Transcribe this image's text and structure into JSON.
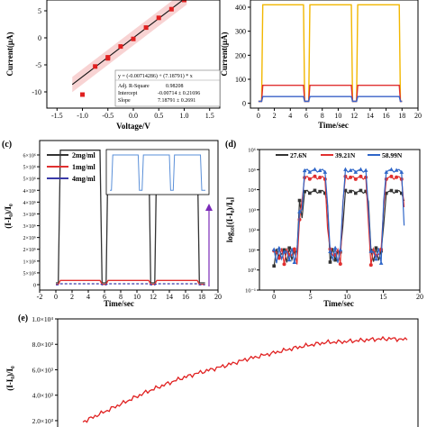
{
  "chart_data": [
    {
      "panel": "a",
      "type": "scatter",
      "xlabel": "Voltage/V",
      "ylabel": "Current(μA)",
      "xticks": [
        "-1.5",
        "-1.0",
        "-0.5",
        "0.0",
        "0.5",
        "1.0",
        "1.5"
      ],
      "yticks": [
        "5",
        "0",
        "-5",
        "-10"
      ],
      "xlim": [
        -1.7,
        1.7
      ],
      "ylim": [
        -13,
        7
      ],
      "points": [
        [
          -1.0,
          -10.5
        ],
        [
          -0.75,
          -5.3
        ],
        [
          -0.5,
          -3.8
        ],
        [
          -0.25,
          -1.6
        ],
        [
          0.0,
          -0.2
        ],
        [
          0.25,
          1.9
        ],
        [
          0.5,
          3.7
        ],
        [
          0.75,
          5.3
        ],
        [
          1.0,
          7.0
        ],
        [
          -0.5,
          -3.6
        ]
      ],
      "fit": {
        "intercept": -0.00714,
        "slope": 7.18791
      },
      "fit_box": {
        "equation": "y = (-0.00714286) + (7.18791) * x",
        "r2_label": "Adj. R-Square",
        "r2_value": "0.98208",
        "intercept_label": "Intercept",
        "intercept_value": "-0.00714 ± 0.21696",
        "slope_label": "Slope",
        "slope_value": "7.18791 ± 0.2691"
      }
    },
    {
      "panel": "b",
      "type": "line",
      "xlabel": "Time/sec",
      "ylabel": "Current(μA)",
      "xticks": [
        "0",
        "2",
        "4",
        "6",
        "8",
        "10",
        "12",
        "14",
        "16",
        "18",
        "20"
      ],
      "yticks": [
        "400",
        "300",
        "200",
        "100",
        "0"
      ],
      "xlim": [
        -1,
        20
      ],
      "ylim": [
        -20,
        430
      ],
      "series": [
        {
          "color": "#f2b700",
          "on": 410,
          "off": 8
        },
        {
          "color": "#e03030",
          "on": 75,
          "off": 8
        },
        {
          "color": "#3a62c8",
          "on": 28,
          "off": 8
        }
      ],
      "cycles": [
        [
          0.4,
          5.8
        ],
        [
          6.3,
          11.8
        ],
        [
          12.3,
          17.8
        ]
      ]
    },
    {
      "panel": "c",
      "type": "line",
      "xlabel": "Time/sec",
      "ylabel": "(I-I₀)/I₀",
      "xticks": [
        "-2",
        "0",
        "2",
        "4",
        "6",
        "8",
        "10",
        "12",
        "14",
        "16",
        "18",
        "20"
      ],
      "yticks": [
        "0",
        "5×10⁵",
        "1×10⁶",
        "2×10⁶",
        "2×10⁶",
        "3×10⁶",
        "3×10⁶",
        "4×10⁶",
        "4×10⁶",
        "5×10⁶",
        "5×10⁶",
        "6×10⁶"
      ],
      "xlim": [
        -2,
        20
      ],
      "ylim": [
        -2,
        60
      ],
      "legend": [
        "2mg/ml",
        "1mg/ml",
        "4mg/ml"
      ],
      "series": [
        {
          "name": "2mg/ml",
          "color": "#333333",
          "on": 56,
          "off": 1
        },
        {
          "name": "1mg/ml",
          "color": "#e03030",
          "on": 2,
          "off": 0.4
        },
        {
          "name": "4mg/ml",
          "color": "#3a3aa8",
          "on": 0.6,
          "off": 0.2
        }
      ],
      "cycles": [
        [
          0.3,
          5.7
        ],
        [
          6.2,
          11.7
        ],
        [
          12.2,
          17.7
        ]
      ]
    },
    {
      "panel": "d",
      "type": "line",
      "xlabel": "Time/sec",
      "ylabel": "log₁₀[(I-I₀)/I₀]",
      "xticks": [
        "0",
        "5",
        "10",
        "15",
        "20"
      ],
      "yticks": [
        "10⁶",
        "10⁵",
        "10⁴",
        "10³",
        "10²",
        "10¹",
        "10⁰",
        "10⁻¹"
      ],
      "xlim": [
        -2,
        20
      ],
      "ylim": [
        -1,
        6
      ],
      "legend": [
        "27.6N",
        "39.21N",
        "58.99N"
      ],
      "series": [
        {
          "name": "27.6N",
          "color": "#333333",
          "on": 3.9
        },
        {
          "name": "39.21N",
          "color": "#e03030",
          "on": 4.6
        },
        {
          "name": "58.99N",
          "color": "#2f66c8",
          "on": 4.95
        }
      ],
      "cycles": [
        [
          3.5,
          7.5
        ],
        [
          9.2,
          13.2
        ],
        [
          14.8,
          18.0
        ]
      ]
    },
    {
      "panel": "e",
      "type": "line",
      "ylabel": "(I-I₀)/I₀",
      "yticks": [
        "1.0×10⁴",
        "8.0×10³",
        "6.0×10³",
        "4.0×10³",
        "2.0×10³"
      ],
      "ylim": [
        1500,
        10000
      ],
      "series": [
        {
          "color": "#e02020",
          "x": [
            0,
            0.05,
            0.1,
            0.15,
            0.2,
            0.25,
            0.3,
            0.35,
            0.4,
            0.45,
            0.5,
            0.55,
            0.6,
            0.65,
            0.7,
            0.75,
            0.8,
            0.85,
            0.9,
            0.95,
            1.0
          ],
          "y": [
            1900,
            2500,
            3100,
            3700,
            4300,
            4800,
            5300,
            5700,
            6050,
            6400,
            6800,
            7100,
            7400,
            7700,
            7950,
            8150,
            8200,
            8300,
            8400,
            8450,
            8350
          ]
        }
      ]
    }
  ],
  "panel_labels": {
    "c": "(c)",
    "d": "(d)",
    "e": "(e)"
  }
}
